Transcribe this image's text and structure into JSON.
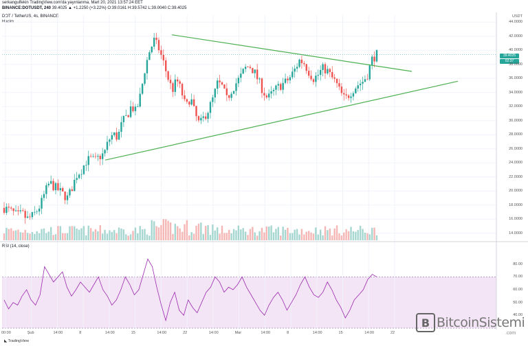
{
  "header": {
    "line1": "serkangulfekin TradingView.com'da yayınlanma, Mart 20, 2021 13:57:24 EET",
    "line2_pair": "BINANCE:DOTUSDT, 240",
    "line2_values": "39.4025 ▲ +1.2250 (+3.22%) O:39.0161 H:39.5742 L:39.0040 C:39.4025",
    "line3": "DOT / TetherUS, 4s, BINANCE",
    "line4": "Hacim"
  },
  "rsi_label": "RSI (14, close)",
  "currency_label": "USDT",
  "price_badges": [
    "39.4025",
    "02:37"
  ],
  "watermark": {
    "logo_letter": "B",
    "text": "BitcoinSistemi",
    "sub": ".com"
  },
  "footer": "TradingView",
  "colors": {
    "up": "#26a69a",
    "down": "#ef5350",
    "trend": "#4caf50",
    "rsi_line": "#9c27b0",
    "rsi_band": "#f3e5f5",
    "grid": "#f0f3fa"
  },
  "chart_data": [
    {
      "type": "candlestick",
      "title": "DOT / TetherUS, 4s, BINANCE",
      "ylim": [
        13,
        45
      ],
      "y_ticks": [
        "44.0000",
        "42.0000",
        "40.0000",
        "38.0000",
        "36.0000",
        "34.0000",
        "32.0000",
        "30.0000",
        "28.0000",
        "26.0000",
        "24.0000",
        "22.0000",
        "20.0000",
        "18.0000",
        "16.0000",
        "14.0000"
      ],
      "x_ticks": [
        "00:00",
        "Şub",
        "14:00",
        "8",
        "14:00",
        "15",
        "14:00",
        "22",
        "14:00",
        "Mar",
        "14:00",
        "8",
        "14:00",
        "15",
        "14:00",
        "22"
      ],
      "close_path": [
        17.6,
        17.3,
        16.9,
        16.5,
        16.8,
        16.0,
        16.3,
        17.0,
        18.0,
        19.8,
        21.2,
        20.6,
        20.1,
        19.5,
        19.0,
        20.6,
        22.3,
        23.0,
        24.2,
        24.6,
        24.3,
        24.9,
        25.3,
        27.2,
        28.1,
        27.6,
        29.8,
        30.6,
        32.1,
        31.2,
        33.6,
        37.4,
        39.9,
        41.4,
        40.3,
        38.4,
        36.2,
        34.3,
        35.8,
        34.2,
        31.8,
        33.4,
        30.9,
        29.4,
        30.5,
        31.6,
        33.2,
        35.4,
        34.8,
        33.0,
        34.3,
        35.3,
        36.2,
        37.4,
        37.8,
        37.0,
        35.6,
        34.2,
        33.1,
        33.9,
        34.6,
        35.1,
        35.5,
        36.2,
        37.3,
        38.6,
        38.2,
        37.0,
        36.0,
        36.4,
        37.4,
        37.2,
        36.2,
        35.4,
        34.0,
        33.0,
        33.8,
        34.6,
        35.2,
        35.6,
        36.6,
        38.8,
        39.4
      ],
      "trendlines": [
        {
          "name": "upper",
          "from": {
            "x": "22",
            "y": 42.2
          },
          "to": {
            "x": "22+",
            "y": 37.0
          }
        },
        {
          "name": "lower",
          "from": {
            "x": "8",
            "y": 24.4
          },
          "to": {
            "x": "22+",
            "y": 35.6
          }
        }
      ]
    },
    {
      "type": "line",
      "title": "RSI (14, close)",
      "ylim": [
        30,
        90
      ],
      "y_ticks": [
        "80.00",
        "70.00",
        "60.00",
        "50.00",
        "40.00"
      ],
      "band": [
        30,
        70
      ],
      "values": [
        52,
        45,
        50,
        48,
        55,
        60,
        52,
        48,
        56,
        78,
        72,
        66,
        70,
        74,
        62,
        55,
        60,
        66,
        62,
        58,
        64,
        70,
        60,
        55,
        48,
        52,
        60,
        70,
        64,
        56,
        60,
        72,
        84,
        78,
        62,
        48,
        36,
        50,
        58,
        44,
        40,
        52,
        46,
        42,
        50,
        58,
        62,
        70,
        66,
        58,
        62,
        60,
        64,
        70,
        62,
        56,
        50,
        44,
        40,
        48,
        54,
        58,
        52,
        44,
        50,
        56,
        64,
        70,
        62,
        56,
        54,
        58,
        66,
        60,
        52,
        46,
        38,
        44,
        52,
        56,
        60,
        68,
        72,
        70
      ]
    }
  ]
}
